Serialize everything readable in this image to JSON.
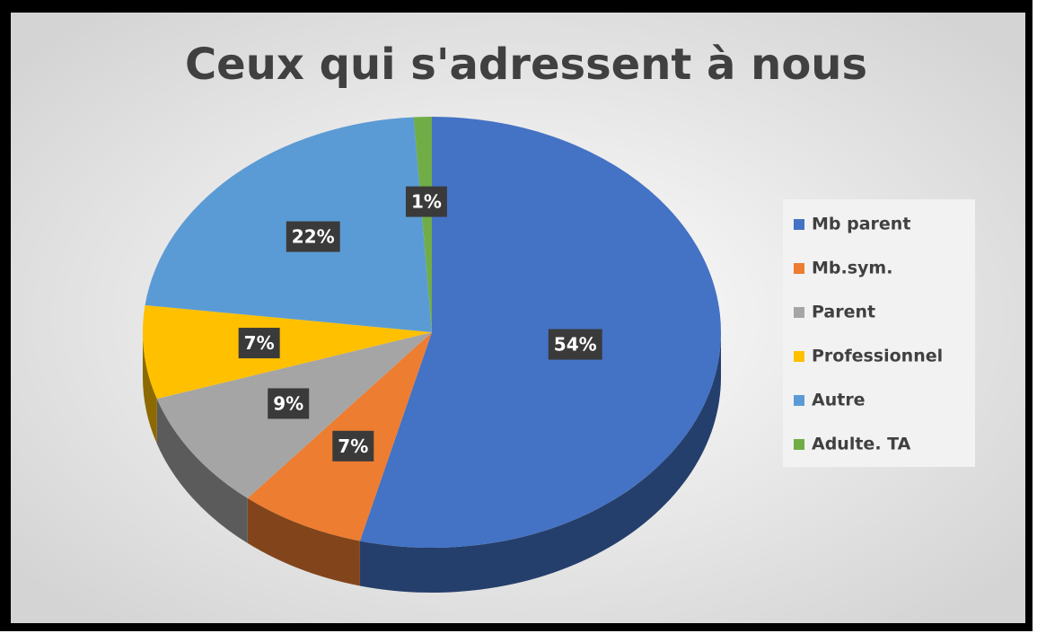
{
  "chart_data": {
    "type": "pie",
    "title": "Ceux qui s'adressent à nous",
    "categories": [
      "Mb parent",
      "Mb.sym.",
      "Parent",
      "Professionnel",
      "Autre",
      "Adulte. TA"
    ],
    "values": [
      54,
      7,
      9,
      7,
      22,
      1
    ],
    "value_labels": [
      "54%",
      "7%",
      "9%",
      "7%",
      "22%",
      "1%"
    ],
    "colors": [
      "#4472c4",
      "#ed7d31",
      "#a5a5a5",
      "#ffc000",
      "#5b9bd5",
      "#70ad47"
    ],
    "legend": "right"
  }
}
